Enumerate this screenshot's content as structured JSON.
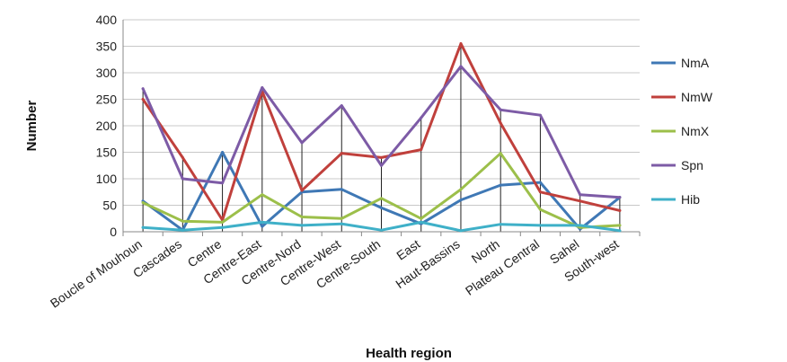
{
  "chart_data": {
    "type": "line",
    "xlabel": "Health region",
    "ylabel": "Number",
    "ylim": [
      0,
      400
    ],
    "yticks": [
      0,
      50,
      100,
      150,
      200,
      250,
      300,
      350,
      400
    ],
    "categories": [
      "Boucle of Mouhoun",
      "Cascades",
      "Centre",
      "Centre-East",
      "Centre-Nord",
      "Centre-West",
      "Centre-South",
      "East",
      "Haut-Bassins",
      "North",
      "Plateau Central",
      "Sahel",
      "South-west"
    ],
    "drop_lines": true,
    "legend_position": "right",
    "series": [
      {
        "name": "NmA",
        "color": "#3f78b5",
        "values": [
          58,
          3,
          150,
          10,
          75,
          80,
          45,
          15,
          60,
          88,
          93,
          5,
          65
        ]
      },
      {
        "name": "NmW",
        "color": "#c0403c",
        "values": [
          250,
          140,
          22,
          265,
          78,
          148,
          140,
          155,
          355,
          205,
          75,
          58,
          40
        ]
      },
      {
        "name": "NmX",
        "color": "#9cbf4a",
        "values": [
          55,
          20,
          18,
          70,
          28,
          25,
          63,
          25,
          80,
          148,
          42,
          8,
          12
        ]
      },
      {
        "name": "Spn",
        "color": "#7d5ba6",
        "values": [
          270,
          100,
          92,
          272,
          168,
          238,
          125,
          215,
          312,
          230,
          220,
          70,
          65
        ]
      },
      {
        "name": "Hib",
        "color": "#3fb0c8",
        "values": [
          8,
          3,
          8,
          18,
          12,
          15,
          3,
          18,
          2,
          14,
          12,
          12,
          2
        ]
      }
    ]
  }
}
